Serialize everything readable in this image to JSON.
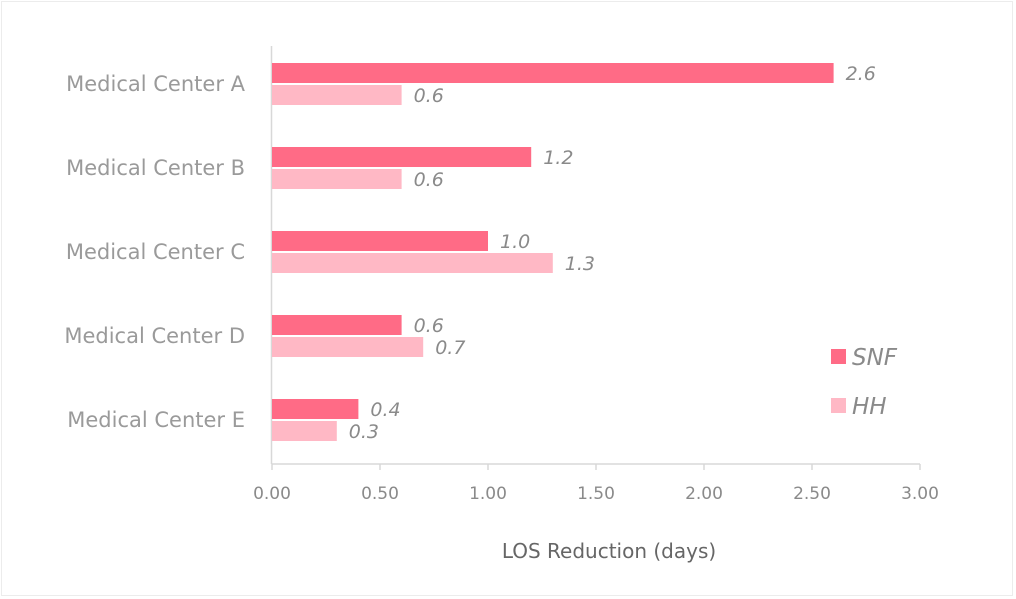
{
  "chart_data": {
    "type": "bar",
    "orientation": "horizontal",
    "categories": [
      "Medical Center A",
      "Medical Center B",
      "Medical Center C",
      "Medical Center D",
      "Medical Center E"
    ],
    "series": [
      {
        "name": "SNF",
        "values": [
          2.6,
          1.2,
          1.0,
          0.6,
          0.4
        ],
        "labels": [
          "2.6",
          "1.2",
          "1.0",
          "0.6",
          "0.4"
        ],
        "color": "#ff6b86"
      },
      {
        "name": "HH",
        "values": [
          0.6,
          0.6,
          1.3,
          0.7,
          0.3
        ],
        "labels": [
          "0.6",
          "0.6",
          "1.3",
          "0.7",
          "0.3"
        ],
        "color": "#ffb8c5"
      }
    ],
    "xlabel": "LOS Reduction (days)",
    "ylabel": "",
    "xlim": [
      0,
      3
    ],
    "xticks": [
      0,
      0.5,
      1,
      1.5,
      2,
      2.5,
      3
    ],
    "xtick_labels": [
      "0.00",
      "0.50",
      "1.00",
      "1.50",
      "2.00",
      "2.50",
      "3.00"
    ],
    "grid": false,
    "legend_position": "right"
  }
}
